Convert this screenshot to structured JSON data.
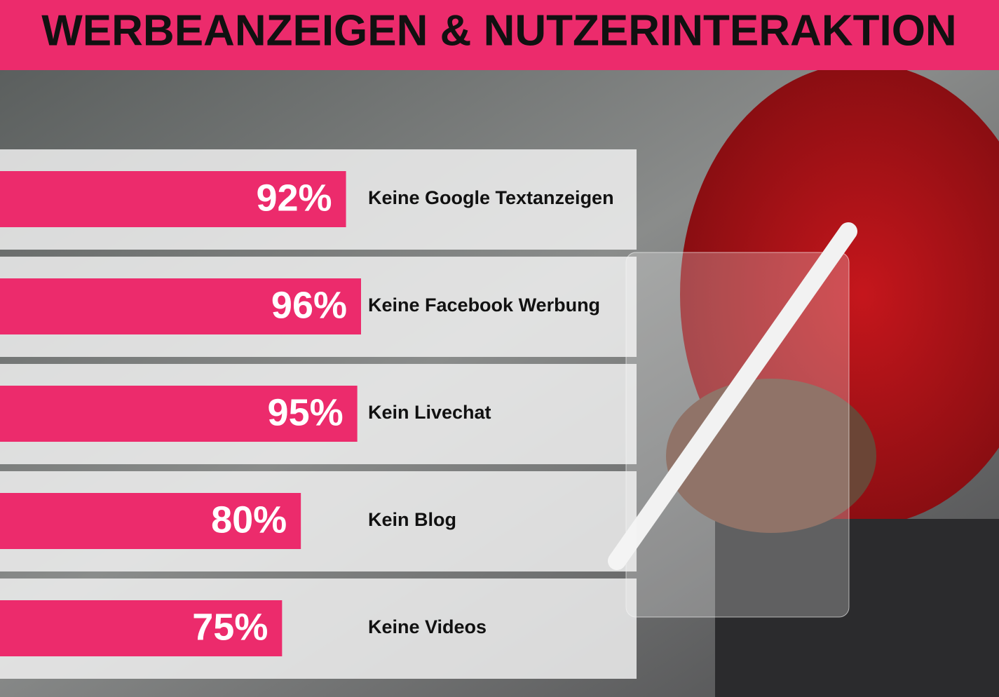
{
  "chart_data": {
    "type": "bar",
    "orientation": "horizontal",
    "title": "WERBEANZEIGEN & NUTZERINTERAKTION",
    "categories": [
      "Keine Google Textanzeigen",
      "Keine Facebook Werbung",
      "Kein Livechat",
      "Kein Blog",
      "Keine Videos"
    ],
    "values": [
      92,
      96,
      95,
      80,
      75
    ],
    "value_labels": [
      "92%",
      "96%",
      "95%",
      "80%",
      "75%"
    ],
    "color": "#ec2b6c"
  }
}
